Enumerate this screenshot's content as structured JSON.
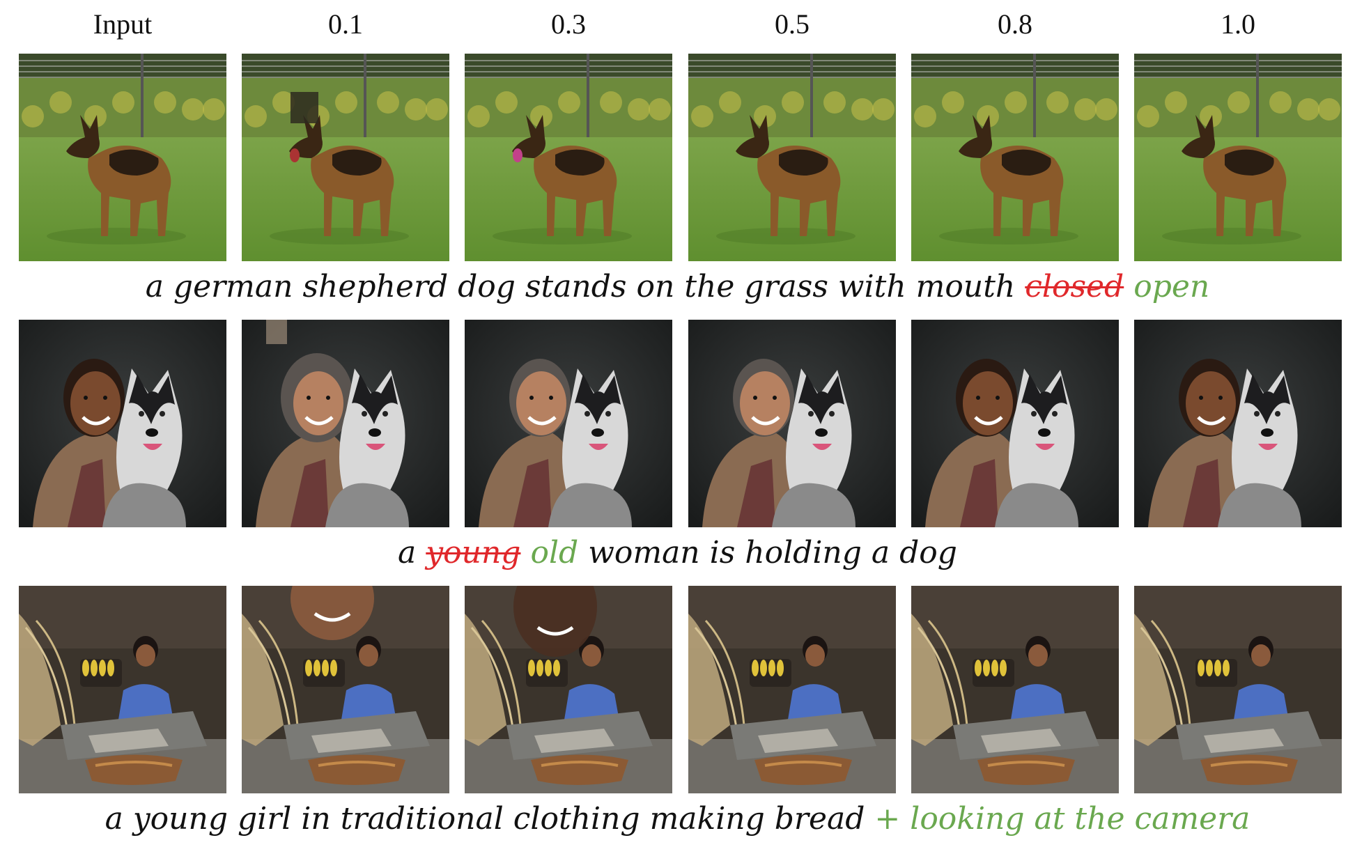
{
  "column_headers": [
    "Input",
    "0.1",
    "0.3",
    "0.5",
    "0.8",
    "1.0"
  ],
  "rows": [
    {
      "scene": "dog",
      "caption": {
        "prefix": "a german shepherd dog stands on the grass with mouth ",
        "removed": "closed",
        "middle": " ",
        "added": "open",
        "suffix": ""
      }
    },
    {
      "scene": "girl",
      "caption": {
        "prefix": "a ",
        "removed": "young",
        "middle": " ",
        "added": "old",
        "suffix": " woman is holding a dog"
      }
    },
    {
      "scene": "bread",
      "caption": {
        "prefix": "a young girl in traditional clothing making bread ",
        "removed": "",
        "middle": "",
        "added": "+ looking at the camera",
        "suffix": ""
      }
    }
  ],
  "colors": {
    "removed": "#e0282b",
    "added": "#6aa84f",
    "text": "#111111"
  }
}
